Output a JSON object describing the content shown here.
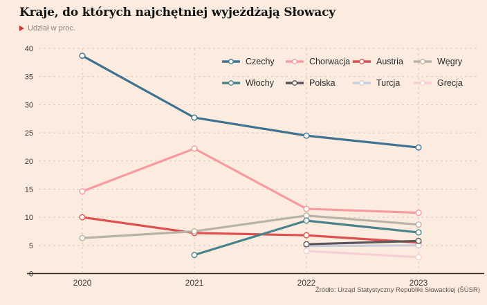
{
  "header": {
    "title": "Kraje, do których najchętniej wyjeżdżają Słowacy",
    "subtitle": "Udział w proc.",
    "accent_color": "#d2312e"
  },
  "source": "Źródło: Urząd Statystyczny Republiki Słowackiej (ŠÚSR)",
  "colors": {
    "background": "#fbecdf",
    "grid": "#d9cabb",
    "axis": "#2e2a26",
    "tick_text": "#3f3a35",
    "marker_fill": "#fffdf8"
  },
  "chart_data": {
    "type": "line",
    "categories": [
      "2020",
      "2021",
      "2022",
      "2023"
    ],
    "series": [
      {
        "name": "Czechy",
        "color": "#3e7290",
        "z": 0,
        "values": [
          38.7,
          27.7,
          24.5,
          22.4
        ]
      },
      {
        "name": "Chorwacja",
        "color": "#f79ba0",
        "z": 0,
        "values": [
          14.6,
          22.2,
          11.5,
          10.8
        ]
      },
      {
        "name": "Austria",
        "color": "#df4f50",
        "z": 0,
        "values": [
          10.0,
          7.2,
          6.8,
          5.5
        ]
      },
      {
        "name": "Węgry",
        "color": "#b9b2a6",
        "z": 0,
        "values": [
          6.3,
          7.5,
          10.3,
          8.7
        ]
      },
      {
        "name": "Włochy",
        "color": "#48838c",
        "z": 0,
        "values": [
          null,
          3.3,
          9.4,
          7.3
        ]
      },
      {
        "name": "Polska",
        "color": "#5a565c",
        "z": 1,
        "values": [
          null,
          null,
          5.2,
          5.8
        ]
      },
      {
        "name": "Turcja",
        "color": "#c9cdd9",
        "z": 0,
        "values": [
          null,
          null,
          4.9,
          5.0
        ]
      },
      {
        "name": "Grecja",
        "color": "#f7ced4",
        "z": 0,
        "values": [
          null,
          null,
          4.0,
          2.9
        ]
      }
    ],
    "ylim": [
      0,
      40
    ],
    "ytick_step": 5,
    "grid": true,
    "marker": "open-circle",
    "legend_position": "top-right-inside"
  }
}
